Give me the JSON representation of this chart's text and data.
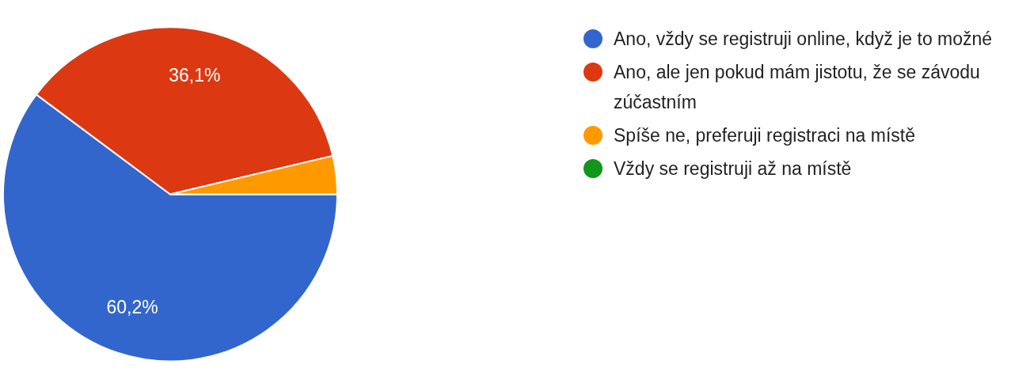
{
  "chart_data": {
    "type": "pie",
    "categories": [
      "Ano, vždy se registruji online, když je to možné",
      "Ano, ale jen pokud mám jistotu, že se závodu zúčastním",
      "Spíše ne, preferuji registraci na místě",
      "Vždy se registruji až na místě"
    ],
    "values": [
      60.2,
      36.1,
      3.7,
      0
    ],
    "colors": [
      "#3366cc",
      "#dc3912",
      "#ff9900",
      "#109618"
    ],
    "value_labels": [
      "60,2%",
      "36,1%",
      null,
      null
    ],
    "legend": "right"
  }
}
